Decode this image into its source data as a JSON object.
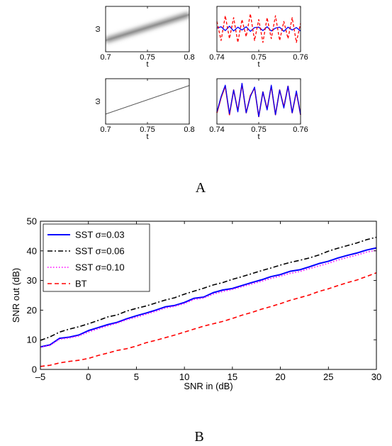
{
  "panel_labels": [
    "A",
    "B"
  ],
  "chart_data": [
    {
      "type": "heatmap",
      "panel": "A",
      "position": "top-left",
      "xlabel": "t",
      "ylabel": "ω",
      "xlim": [
        0.7,
        0.8
      ],
      "xticks": [
        "0.7",
        "0.75",
        "0.8"
      ],
      "description_values": {
        "ridge_start": [
          0.7,
          0.25
        ],
        "ridge_end": [
          0.8,
          0.82
        ],
        "blurred": true
      }
    },
    {
      "type": "line",
      "panel": "A",
      "position": "top-right",
      "xlabel": "t",
      "xlim": [
        0.74,
        0.76
      ],
      "xticks": [
        "0.74",
        "0.75",
        "0.76"
      ],
      "series": [
        {
          "color": "#0000ff",
          "style": "solid",
          "x": [
            0.74,
            0.741,
            0.742,
            0.743,
            0.744,
            0.745,
            0.746,
            0.747,
            0.748,
            0.749,
            0.75,
            0.751,
            0.752,
            0.753,
            0.754,
            0.755,
            0.756,
            0.757,
            0.758,
            0.759,
            0.76
          ],
          "values": [
            0.05,
            0.12,
            -0.08,
            0.15,
            -0.1,
            0.1,
            -0.05,
            0.12,
            -0.12,
            0.08,
            0.1,
            -0.08,
            0.12,
            -0.1,
            0.05,
            0.1,
            -0.12,
            0.1,
            -0.05,
            0.08,
            -0.1
          ]
        },
        {
          "color": "#ff0000",
          "style": "dashed",
          "x": [
            0.74,
            0.741,
            0.742,
            0.743,
            0.744,
            0.745,
            0.746,
            0.747,
            0.748,
            0.749,
            0.75,
            0.751,
            0.752,
            0.753,
            0.754,
            0.755,
            0.756,
            0.757,
            0.758,
            0.759,
            0.76
          ],
          "values": [
            0.4,
            -0.6,
            0.7,
            -0.5,
            0.6,
            -0.7,
            0.5,
            -0.4,
            0.8,
            -0.6,
            0.5,
            -0.7,
            0.6,
            -0.5,
            0.7,
            -0.6,
            0.4,
            -0.5,
            0.6,
            -0.7,
            0.3
          ]
        }
      ]
    },
    {
      "type": "heatmap",
      "panel": "A",
      "position": "bottom-left",
      "xlabel": "t",
      "ylabel": "ω",
      "xlim": [
        0.7,
        0.8
      ],
      "xticks": [
        "0.7",
        "0.75",
        "0.8"
      ],
      "description_values": {
        "ridge_start": [
          0.7,
          0.22
        ],
        "ridge_end": [
          0.8,
          0.85
        ],
        "blurred": false
      }
    },
    {
      "type": "line",
      "panel": "A",
      "position": "bottom-right",
      "xlabel": "t",
      "xlim": [
        0.74,
        0.76
      ],
      "xticks": [
        "0.74",
        "0.75",
        "0.76"
      ],
      "series": [
        {
          "color": "#ff0000",
          "style": "solid",
          "x": [
            0.74,
            0.741,
            0.742,
            0.743,
            0.744,
            0.745,
            0.746,
            0.747,
            0.748,
            0.749,
            0.75,
            0.751,
            0.752,
            0.753,
            0.754,
            0.755,
            0.756,
            0.757,
            0.758,
            0.759,
            0.76
          ],
          "values": [
            -0.6,
            0.2,
            0.8,
            -0.7,
            0.6,
            -0.5,
            0.9,
            -0.6,
            0.3,
            0.7,
            -0.8,
            0.5,
            -0.4,
            0.8,
            -0.7,
            0.6,
            -0.3,
            0.8,
            -0.6,
            0.5,
            -0.7
          ]
        },
        {
          "color": "#0000ff",
          "style": "solid",
          "x": [
            0.74,
            0.741,
            0.742,
            0.743,
            0.744,
            0.745,
            0.746,
            0.747,
            0.748,
            0.749,
            0.75,
            0.751,
            0.752,
            0.753,
            0.754,
            0.755,
            0.756,
            0.757,
            0.758,
            0.759,
            0.76
          ],
          "values": [
            -0.55,
            0.25,
            0.85,
            -0.65,
            0.6,
            -0.55,
            0.95,
            -0.6,
            0.25,
            0.75,
            -0.8,
            0.5,
            -0.45,
            0.85,
            -0.7,
            0.6,
            -0.35,
            0.8,
            -0.6,
            0.55,
            -0.7
          ]
        }
      ]
    },
    {
      "type": "line",
      "panel": "B",
      "xlabel": "SNR in (dB)",
      "ylabel": "SNR out (dB)",
      "xlim": [
        -5,
        30
      ],
      "ylim": [
        0,
        50
      ],
      "xticks": [
        "–5",
        "0",
        "5",
        "10",
        "15",
        "20",
        "25",
        "30"
      ],
      "yticks": [
        "0",
        "10",
        "20",
        "30",
        "40",
        "50"
      ],
      "legend_position": "top-left",
      "x": [
        -5,
        -4,
        -3,
        -2,
        -1,
        0,
        1,
        2,
        3,
        4,
        5,
        6,
        7,
        8,
        9,
        10,
        11,
        12,
        13,
        14,
        15,
        16,
        17,
        18,
        19,
        20,
        21,
        22,
        23,
        24,
        25,
        26,
        27,
        28,
        29,
        30
      ],
      "series": [
        {
          "name": "SST σ=0.03",
          "color": "#0000ff",
          "style": "solid",
          "values": [
            7.6,
            8.3,
            10.5,
            10.9,
            11.6,
            13.1,
            14.1,
            15.1,
            15.9,
            17.1,
            18.1,
            19.0,
            20.0,
            21.1,
            21.6,
            22.6,
            24.0,
            24.4,
            25.9,
            26.8,
            27.3,
            28.3,
            29.3,
            30.2,
            31.3,
            32.0,
            33.1,
            33.6,
            34.6,
            35.7,
            36.5,
            37.6,
            38.5,
            39.3,
            40.3,
            41.0
          ]
        },
        {
          "name": "SST σ=0.06",
          "color": "#000000",
          "style": "dashdot",
          "values": [
            9.8,
            11.0,
            12.6,
            13.6,
            14.4,
            15.4,
            16.5,
            17.7,
            18.4,
            19.7,
            20.6,
            21.4,
            22.4,
            23.4,
            24.2,
            25.4,
            26.4,
            27.4,
            28.5,
            29.3,
            30.4,
            31.3,
            32.3,
            33.3,
            34.2,
            35.2,
            36.1,
            36.8,
            37.6,
            38.6,
            39.9,
            40.9,
            41.8,
            42.7,
            43.8,
            44.6
          ]
        },
        {
          "name": "SST σ=0.10",
          "color": "#ff00ff",
          "style": "dotted",
          "values": [
            7.5,
            8.1,
            10.2,
            10.6,
            11.3,
            12.6,
            13.7,
            14.7,
            15.6,
            16.8,
            17.6,
            18.6,
            19.6,
            20.7,
            21.3,
            22.2,
            23.6,
            24.1,
            25.4,
            26.3,
            27.0,
            27.9,
            28.8,
            29.7,
            30.7,
            31.5,
            32.4,
            33.0,
            34.0,
            34.9,
            35.8,
            36.9,
            37.8,
            38.6,
            39.6,
            40.2
          ]
        },
        {
          "name": "BT",
          "color": "#ff0000",
          "style": "dashed",
          "values": [
            1.0,
            1.4,
            2.2,
            2.7,
            3.1,
            3.7,
            4.7,
            5.5,
            6.4,
            7.0,
            7.9,
            9.0,
            9.8,
            10.7,
            11.6,
            12.6,
            13.6,
            14.6,
            15.4,
            16.2,
            17.2,
            18.3,
            19.2,
            20.3,
            21.2,
            22.2,
            23.3,
            24.2,
            25.1,
            26.3,
            27.2,
            28.3,
            29.3,
            30.2,
            31.4,
            32.6
          ]
        }
      ]
    }
  ]
}
